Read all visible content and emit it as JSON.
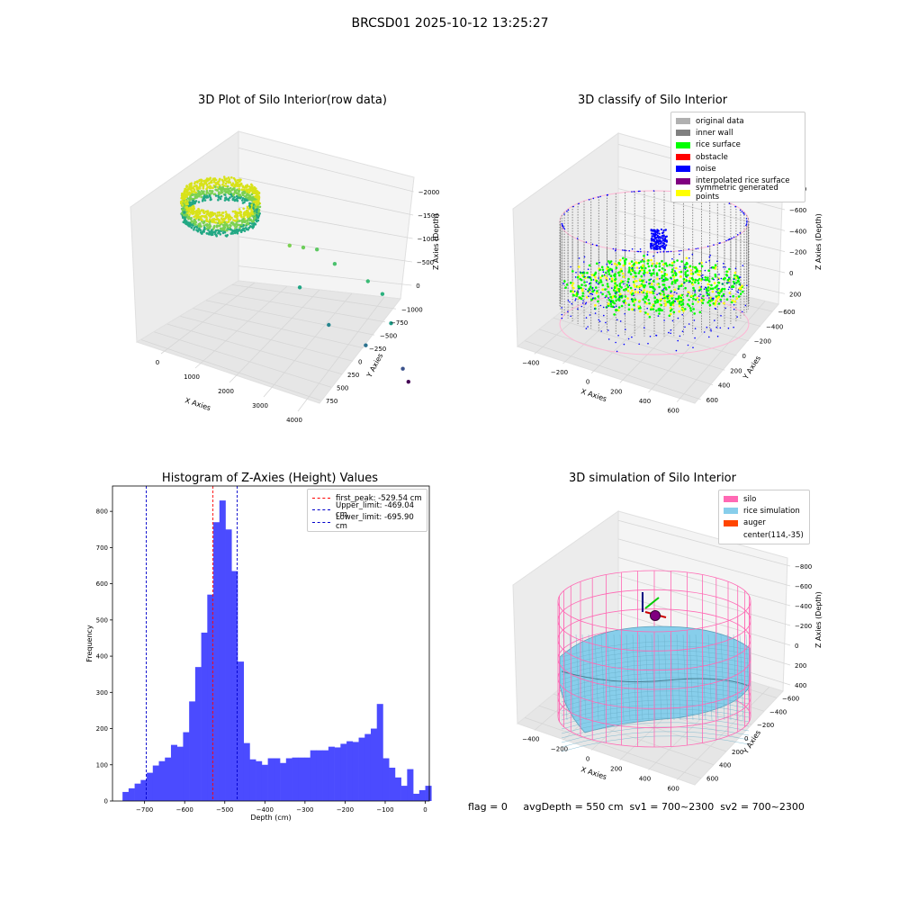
{
  "figure": {
    "suptitle": "BRCSD01 2025-10-12 13:25:27",
    "footer": "flag = 0     avgDepth = 550 cm  sv1 = 700~2300  sv2 = 700~2300"
  },
  "colors": {
    "histogram_bar": "#4b4bff",
    "peak_line": "#ff0000",
    "limit_line": "#0000cc",
    "silo_wire": "#ff69b4",
    "rice_sim": "#87ceeb",
    "auger": "#ff4500",
    "grid_pane": "#f2f2f2"
  },
  "chart_data": [
    {
      "type": "scatter",
      "subtype": "3d",
      "title": "3D Plot of Silo Interior(row data)",
      "xlabel": "X Axies",
      "ylabel": "Y Axies",
      "zlabel": "Z Axies (Depth)",
      "x_ticks": [
        "0",
        "1000",
        "2000",
        "3000",
        "4000"
      ],
      "y_ticks": [
        "750",
        "500",
        "250",
        "0",
        "−250",
        "−500",
        "−750",
        "−1000"
      ],
      "z_ticks": [
        "0",
        "−500",
        "−1000",
        "−1500",
        "−2000"
      ],
      "outlier_points": [
        {
          "x": 1500,
          "y": 500,
          "z": -950
        },
        {
          "x": 1800,
          "y": 400,
          "z": -900
        },
        {
          "x": 2100,
          "y": 300,
          "z": -850
        },
        {
          "x": 2500,
          "y": 200,
          "z": -1000
        },
        {
          "x": 3300,
          "y": 150,
          "z": -1200
        },
        {
          "x": 3600,
          "y": 0,
          "z": -1300
        },
        {
          "x": 1600,
          "y": 100,
          "z": -1400
        },
        {
          "x": 3700,
          "y": -300,
          "z": -1600
        },
        {
          "x": 2200,
          "y": -200,
          "z": -1800
        },
        {
          "x": 3000,
          "y": -500,
          "z": -1900
        },
        {
          "x": 3800,
          "y": -800,
          "z": -2050
        },
        {
          "x": 3900,
          "y": -900,
          "z": -2200
        }
      ]
    },
    {
      "type": "scatter",
      "subtype": "3d",
      "title": "3D classify of Silo Interior",
      "xlabel": "X Axies",
      "ylabel": "Y Axies",
      "zlabel": "Z Axies (Depth)",
      "x_ticks": [
        "−400",
        "−200",
        "0",
        "200",
        "400",
        "600"
      ],
      "y_ticks": [
        "600",
        "400",
        "200",
        "0",
        "−200",
        "−400",
        "−600"
      ],
      "z_ticks": [
        "200",
        "0",
        "−200",
        "−400",
        "−600",
        "−800"
      ],
      "legend": [
        {
          "label": "original data",
          "color": "#b0b0b0"
        },
        {
          "label": "inner wall",
          "color": "#808080"
        },
        {
          "label": "rice surface",
          "color": "#00ff00"
        },
        {
          "label": "obstacle",
          "color": "#ff0000"
        },
        {
          "label": "noise",
          "color": "#0000ff"
        },
        {
          "label": "interpolated rice surface",
          "color": "#800080"
        },
        {
          "label": "symmetric generated points",
          "color": "#ffff00"
        }
      ]
    },
    {
      "type": "bar",
      "subtype": "histogram",
      "title": "Histogram of Z-Axies (Height) Values",
      "xlabel": "Depth (cm)",
      "ylabel": "Frequency",
      "xlim": [
        -780,
        10
      ],
      "ylim": [
        0,
        870
      ],
      "x_ticks": [
        -700,
        -600,
        -500,
        -400,
        -300,
        -200,
        -100,
        0
      ],
      "x_tick_labels": [
        "−700",
        "−600",
        "−500",
        "−400",
        "−300",
        "−200",
        "−100",
        "0"
      ],
      "y_ticks": [
        0,
        100,
        200,
        300,
        400,
        500,
        600,
        700,
        800
      ],
      "y_tick_labels": [
        "0",
        "100",
        "200",
        "300",
        "400",
        "500",
        "600",
        "700",
        "800"
      ],
      "bin_start": -755,
      "bin_width": 15.1,
      "values": [
        25,
        35,
        48,
        58,
        78,
        98,
        110,
        120,
        155,
        150,
        190,
        275,
        370,
        465,
        570,
        770,
        830,
        750,
        635,
        385,
        160,
        115,
        110,
        100,
        118,
        118,
        105,
        118,
        120,
        120,
        120,
        140,
        140,
        140,
        150,
        148,
        158,
        165,
        163,
        175,
        185,
        200,
        268,
        118,
        92,
        65,
        42,
        88,
        20,
        30,
        42
      ],
      "vlines": [
        {
          "name": "first_peak",
          "x": -529.54,
          "color": "#ff0000",
          "label": "first_peak: -529.54 cm"
        },
        {
          "name": "upper",
          "x": -469.04,
          "color": "#0000cc",
          "label": "Upper_limit: -469.04 cm"
        },
        {
          "name": "lower",
          "x": -695.9,
          "color": "#0000cc",
          "label": "Lower_limit: -695.90 cm"
        }
      ],
      "legend_position": "top-right"
    },
    {
      "type": "surface",
      "subtype": "3d",
      "title": "3D simulation of Silo Interior",
      "xlabel": "X Axies",
      "ylabel": "Y Axies",
      "zlabel": "Z Axies (Depth)",
      "x_ticks": [
        "−400",
        "−200",
        "0",
        "200",
        "400",
        "600"
      ],
      "y_ticks": [
        "600",
        "400",
        "200",
        "0",
        "−200",
        "−400",
        "−600"
      ],
      "z_ticks": [
        "400",
        "200",
        "0",
        "−200",
        "−400",
        "−600",
        "−800"
      ],
      "legend": [
        {
          "label": "silo",
          "color": "#ff69b4"
        },
        {
          "label": "rice simulation",
          "color": "#87ceeb"
        },
        {
          "label": "auger",
          "color": "#ff4500"
        },
        {
          "label": "center(114,-35)",
          "color": ""
        }
      ]
    }
  ]
}
